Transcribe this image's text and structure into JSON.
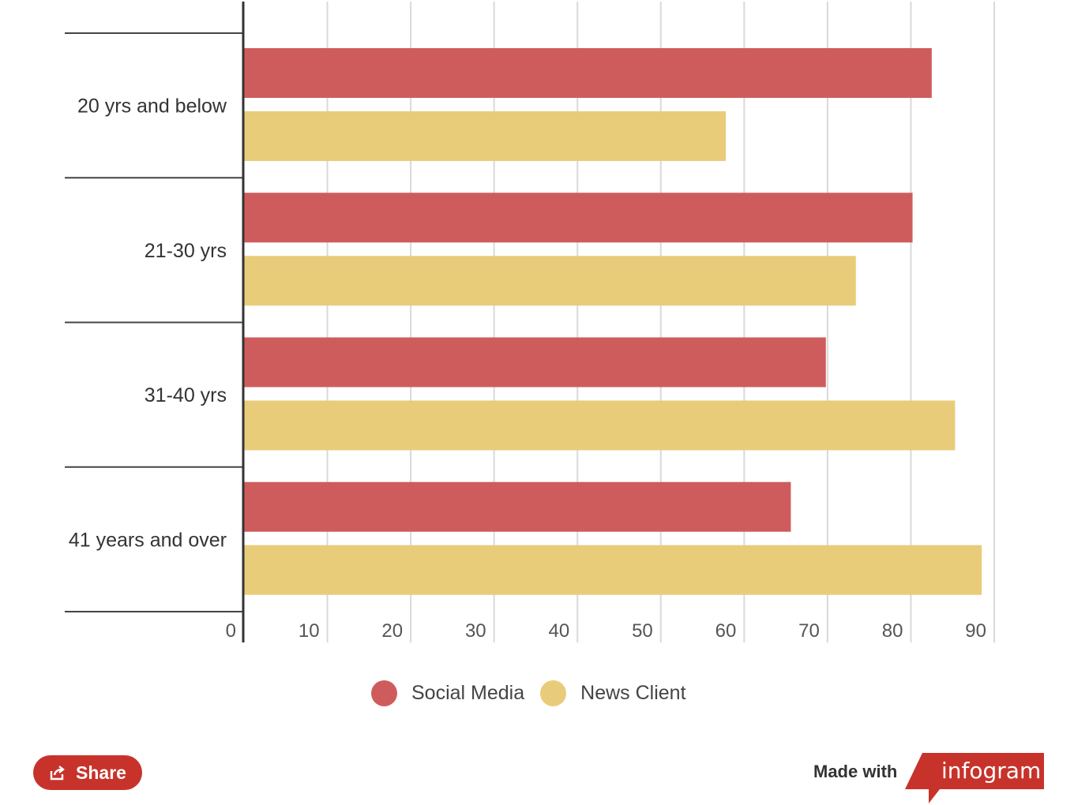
{
  "chart_data": {
    "type": "bar",
    "orientation": "horizontal",
    "categories": [
      "20 yrs and below",
      "21-30 yrs",
      "31-40 yrs",
      "41 years and over"
    ],
    "series": [
      {
        "name": "Social Media",
        "color": "#cf5c5c",
        "values": [
          82.5,
          80.2,
          69.8,
          65.6
        ]
      },
      {
        "name": "News Client",
        "color": "#e9cc7a",
        "values": [
          57.8,
          73.4,
          85.3,
          88.5
        ]
      }
    ],
    "xlim": [
      0,
      90
    ],
    "xticks": [
      "0",
      "10",
      "20",
      "30",
      "40",
      "50",
      "60",
      "70",
      "80",
      "90"
    ],
    "grid": true,
    "legend_position": "bottom-center"
  },
  "legend": {
    "items": [
      {
        "label": "Social Media",
        "color": "#cf5c5c"
      },
      {
        "label": "News Client",
        "color": "#e9cc7a"
      }
    ]
  },
  "footer": {
    "share_label": "Share",
    "made_with": "Made with",
    "brand": "infogram",
    "brand_color": "#c7332b"
  }
}
